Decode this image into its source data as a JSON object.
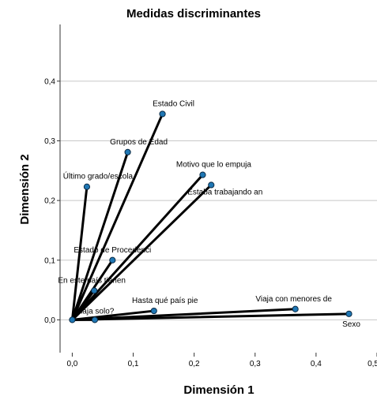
{
  "chart_data": {
    "type": "scatter",
    "title": "Medidas discriminantes",
    "xlabel": "Dimensión 1",
    "ylabel": "Dimensión 2",
    "xlim": [
      -0.02,
      0.5
    ],
    "ylim": [
      -0.055,
      0.495
    ],
    "x_ticks": [
      "0,0",
      "0,1",
      "0,2",
      "0,3",
      "0,4",
      "0,5"
    ],
    "y_ticks": [
      "0,0",
      "0,1",
      "0,2",
      "0,3",
      "0,4"
    ],
    "grid": "horizontal",
    "legend": "none",
    "vectors_from_origin": true,
    "point_color": "#1f77b4",
    "line_color": "#000000",
    "points": [
      {
        "label": "Estado Civil",
        "x": 0.148,
        "y": 0.345
      },
      {
        "label": "Grupos de Edad",
        "x": 0.091,
        "y": 0.281
      },
      {
        "label": "Último grado/escola",
        "x": 0.024,
        "y": 0.223
      },
      {
        "label": "Motivo que lo empuja",
        "x": 0.214,
        "y": 0.243
      },
      {
        "label": "Estaba trabajando an",
        "x": 0.228,
        "y": 0.226
      },
      {
        "label": "Estado de Procedenci",
        "x": 0.066,
        "y": 0.1
      },
      {
        "label": "En este país tienen",
        "x": 0.036,
        "y": 0.049
      },
      {
        "label": "Hasta qué país pie",
        "x": 0.134,
        "y": 0.015
      },
      {
        "label": "Viaja solo?",
        "x": 0.037,
        "y": 0.0
      },
      {
        "label": "Viaja con menores de",
        "x": 0.366,
        "y": 0.018
      },
      {
        "label": "Sexo",
        "x": 0.454,
        "y": 0.01
      }
    ]
  }
}
